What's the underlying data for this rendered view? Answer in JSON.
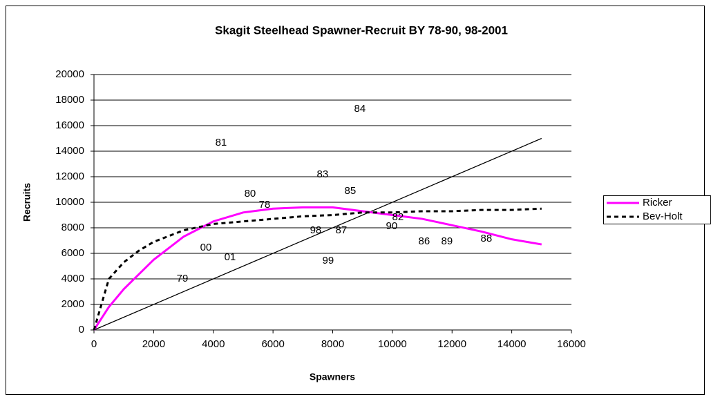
{
  "chart_data": {
    "type": "scatter",
    "title": "Skagit Steelhead Spawner-Recruit BY 78-90, 98-2001",
    "x_label": "Spawners",
    "y_label": "Recruits",
    "xlim": [
      0,
      16000
    ],
    "ylim": [
      0,
      20000
    ],
    "xticks": [
      0,
      2000,
      4000,
      6000,
      8000,
      10000,
      12000,
      14000,
      16000
    ],
    "yticks": [
      0,
      2000,
      4000,
      6000,
      8000,
      10000,
      12000,
      14000,
      16000,
      18000,
      20000
    ],
    "grid": true,
    "legend": "right",
    "points": {
      "labels": [
        "81",
        "84",
        "83",
        "80",
        "85",
        "78",
        "82",
        "90",
        "98",
        "87",
        "86",
        "89",
        "88",
        "00",
        "01",
        "99",
        "79"
      ],
      "x": [
        4259,
        8912,
        7662,
        5231,
        8588,
        5718,
        10185,
        9977,
        7431,
        8287,
        11065,
        11829,
        13148,
        3750,
        4560,
        7847,
        2963
      ],
      "y": [
        14649,
        17297,
        12162,
        10649,
        10865,
        9784,
        8811,
        8108,
        7784,
        7784,
        6919,
        6919,
        7135,
        6432,
        5676,
        5405,
        4000
      ]
    },
    "series": [
      {
        "color": "#000000",
        "dash": "solid",
        "x": [
          0,
          15000
        ],
        "values": [
          0,
          15000
        ]
      },
      {
        "name": "Ricker",
        "color": "#ff00ff",
        "dash": "solid",
        "x": [
          0,
          500,
          1000,
          2000,
          3000,
          4000,
          5000,
          6000,
          7000,
          8000,
          9000,
          10000,
          11000,
          12000,
          13000,
          14000,
          15000
        ],
        "values": [
          0,
          1800,
          3200,
          5500,
          7300,
          8500,
          9200,
          9500,
          9600,
          9600,
          9300,
          9000,
          8700,
          8200,
          7700,
          7100,
          6700
        ]
      },
      {
        "name": "Bev-Holt",
        "color": "#000000",
        "dash": "dashed",
        "x": [
          0,
          250,
          500,
          1000,
          1500,
          2000,
          3000,
          4000,
          5000,
          6000,
          7000,
          8000,
          9000,
          10000,
          11000,
          12000,
          13000,
          14000,
          15000
        ],
        "values": [
          0,
          2000,
          4000,
          5300,
          6200,
          6900,
          7800,
          8300,
          8500,
          8700,
          8900,
          9000,
          9200,
          9200,
          9300,
          9300,
          9400,
          9400,
          9500
        ]
      }
    ]
  }
}
